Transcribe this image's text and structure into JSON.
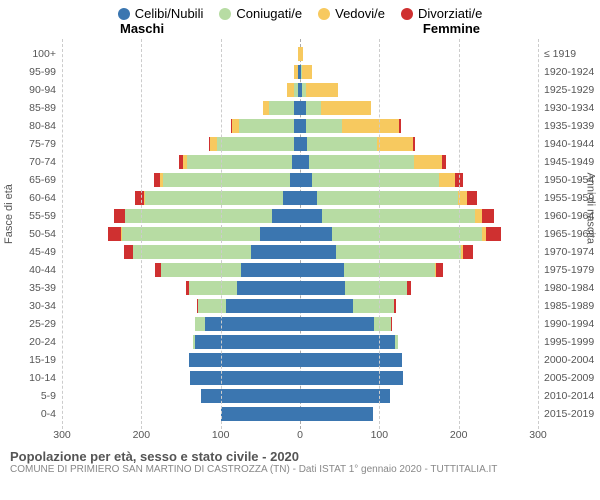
{
  "chart": {
    "type": "butterfly-bar",
    "legend": [
      {
        "label": "Celibi/Nubili",
        "color": "#3b76b0"
      },
      {
        "label": "Coniugati/e",
        "color": "#b7dca3"
      },
      {
        "label": "Vedovi/e",
        "color": "#f7c95f"
      },
      {
        "label": "Divorziati/e",
        "color": "#cf3030"
      }
    ],
    "header_male": "Maschi",
    "header_female": "Femmine",
    "y_left_title": "Fasce di età",
    "y_right_title": "Anni di nascita",
    "x_max": 300,
    "x_ticks": [
      300,
      200,
      100,
      0,
      100,
      200,
      300
    ],
    "background": "#ffffff",
    "grid_color": "#cccccc",
    "axis_fontsize": 10.5,
    "legend_fontsize": 13,
    "rows": [
      {
        "age": "100+",
        "birth": "≤ 1919",
        "m": [
          0,
          0,
          2,
          0
        ],
        "f": [
          0,
          0,
          4,
          0
        ]
      },
      {
        "age": "95-99",
        "birth": "1920-1924",
        "m": [
          2,
          1,
          4,
          0
        ],
        "f": [
          1,
          1,
          13,
          0
        ]
      },
      {
        "age": "90-94",
        "birth": "1925-1929",
        "m": [
          2,
          6,
          8,
          0
        ],
        "f": [
          3,
          4,
          41,
          0
        ]
      },
      {
        "age": "85-89",
        "birth": "1930-1934",
        "m": [
          7,
          32,
          8,
          0
        ],
        "f": [
          7,
          19,
          64,
          0
        ]
      },
      {
        "age": "80-84",
        "birth": "1935-1939",
        "m": [
          8,
          69,
          9,
          1
        ],
        "f": [
          8,
          45,
          72,
          2
        ]
      },
      {
        "age": "75-79",
        "birth": "1940-1944",
        "m": [
          8,
          97,
          8,
          2
        ],
        "f": [
          9,
          88,
          45,
          3
        ]
      },
      {
        "age": "70-74",
        "birth": "1945-1949",
        "m": [
          10,
          132,
          5,
          5
        ],
        "f": [
          11,
          133,
          35,
          5
        ]
      },
      {
        "age": "65-69",
        "birth": "1950-1954",
        "m": [
          13,
          160,
          3,
          8
        ],
        "f": [
          15,
          160,
          21,
          9
        ]
      },
      {
        "age": "60-64",
        "birth": "1955-1959",
        "m": [
          22,
          173,
          2,
          11
        ],
        "f": [
          22,
          177,
          12,
          12
        ]
      },
      {
        "age": "55-59",
        "birth": "1960-1964",
        "m": [
          35,
          185,
          1,
          13
        ],
        "f": [
          28,
          193,
          8,
          15
        ]
      },
      {
        "age": "50-54",
        "birth": "1965-1969",
        "m": [
          50,
          175,
          1,
          16
        ],
        "f": [
          40,
          190,
          5,
          18
        ]
      },
      {
        "age": "45-49",
        "birth": "1970-1974",
        "m": [
          62,
          148,
          0,
          12
        ],
        "f": [
          45,
          158,
          3,
          12
        ]
      },
      {
        "age": "40-44",
        "birth": "1975-1979",
        "m": [
          75,
          100,
          0,
          8
        ],
        "f": [
          55,
          115,
          1,
          9
        ]
      },
      {
        "age": "35-39",
        "birth": "1980-1984",
        "m": [
          80,
          60,
          0,
          4
        ],
        "f": [
          57,
          78,
          0,
          5
        ]
      },
      {
        "age": "30-34",
        "birth": "1985-1989",
        "m": [
          93,
          35,
          0,
          2
        ],
        "f": [
          67,
          52,
          0,
          2
        ]
      },
      {
        "age": "25-29",
        "birth": "1990-1994",
        "m": [
          120,
          12,
          0,
          0
        ],
        "f": [
          93,
          22,
          0,
          1
        ]
      },
      {
        "age": "20-24",
        "birth": "1995-1999",
        "m": [
          133,
          2,
          0,
          0
        ],
        "f": [
          120,
          3,
          0,
          0
        ]
      },
      {
        "age": "15-19",
        "birth": "2000-2004",
        "m": [
          140,
          0,
          0,
          0
        ],
        "f": [
          128,
          0,
          0,
          0
        ]
      },
      {
        "age": "10-14",
        "birth": "2005-2009",
        "m": [
          139,
          0,
          0,
          0
        ],
        "f": [
          130,
          0,
          0,
          0
        ]
      },
      {
        "age": "5-9",
        "birth": "2010-2014",
        "m": [
          125,
          0,
          0,
          0
        ],
        "f": [
          113,
          0,
          0,
          0
        ]
      },
      {
        "age": "0-4",
        "birth": "2015-2019",
        "m": [
          100,
          0,
          0,
          0
        ],
        "f": [
          92,
          0,
          0,
          0
        ]
      }
    ],
    "title": "Popolazione per età, sesso e stato civile - 2020",
    "subtitle": "COMUNE DI PRIMIERO SAN MARTINO DI CASTROZZA (TN) - Dati ISTAT 1° gennaio 2020 - TUTTITALIA.IT"
  }
}
